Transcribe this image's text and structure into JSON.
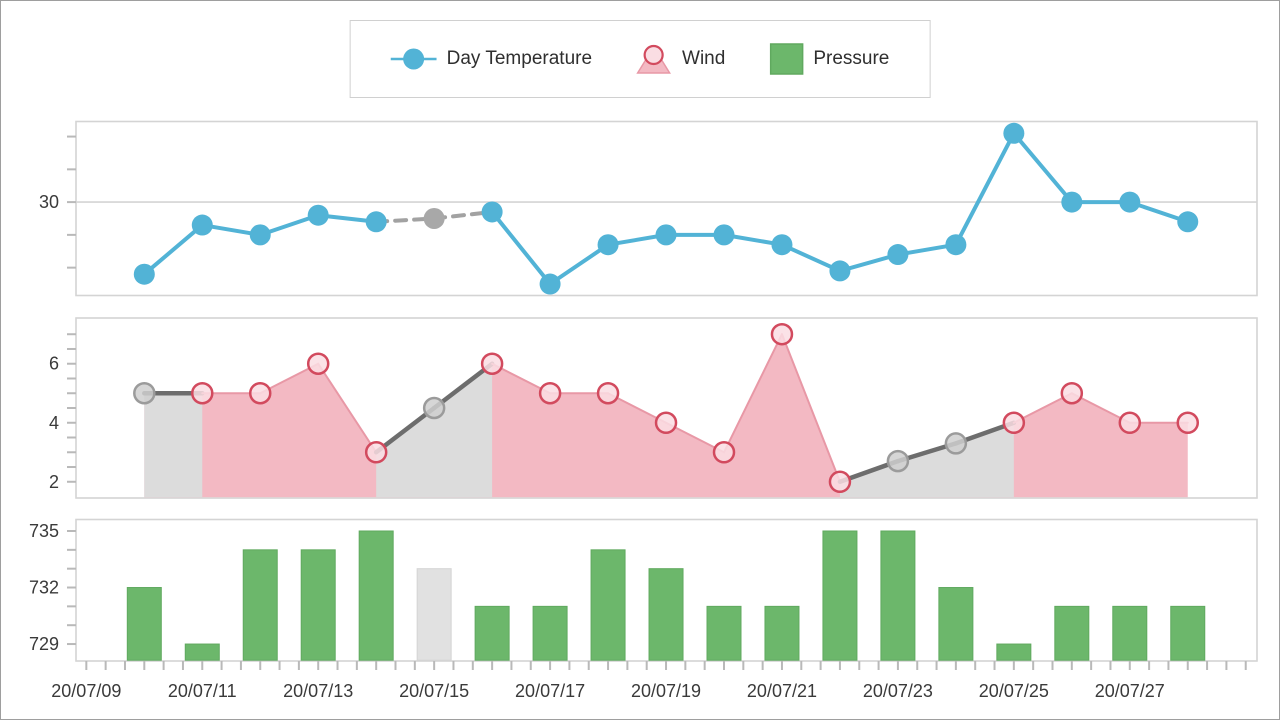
{
  "legend": {
    "items": [
      {
        "label": "Day Temperature",
        "series": "temperature",
        "marker": "line-circle"
      },
      {
        "label": "Wind",
        "series": "wind",
        "marker": "triangle-circle"
      },
      {
        "label": "Pressure",
        "series": "pressure",
        "marker": "square"
      }
    ]
  },
  "colors": {
    "temperature": "#52b3d6",
    "wind_area_fill": "#f3b9c3",
    "wind_line": "#e898a6",
    "wind_marker_stroke": "#d24a5e",
    "wind_marker_fill": "#fadde3",
    "pressure": "#6cb76b",
    "pressure_border": "#60a95f",
    "estimated_area_fill": "#dcdcdc",
    "estimated_thick_line": "#6d6d6d",
    "estimated_dash_line": "#a2a2a2",
    "estimated_marker_fill": "#a8a8a8",
    "estimated_wind_marker_fill": "#cfcfcf",
    "estimated_wind_marker_stroke": "#9b9b9b",
    "estimated_bar_fill": "#e1e1e1",
    "estimated_bar_border": "#d4d4d4",
    "pane_border": "#d4d4d4",
    "gridline": "#d4d4d4",
    "tick": "#b9b9b9",
    "text": "#3a3a3a"
  },
  "x_axis": {
    "labels": [
      {
        "day_offset": -1,
        "text": "20/07/09"
      },
      {
        "day_offset": 1,
        "text": "20/07/11"
      },
      {
        "day_offset": 3,
        "text": "20/07/13"
      },
      {
        "day_offset": 5,
        "text": "20/07/15"
      },
      {
        "day_offset": 7,
        "text": "20/07/17"
      },
      {
        "day_offset": 9,
        "text": "20/07/19"
      },
      {
        "day_offset": 11,
        "text": "20/07/21"
      },
      {
        "day_offset": 13,
        "text": "20/07/23"
      },
      {
        "day_offset": 15,
        "text": "20/07/25"
      },
      {
        "day_offset": 17,
        "text": "20/07/27"
      }
    ]
  },
  "chart_data": [
    {
      "name": "temperature",
      "type": "line",
      "legend_label": "Day Temperature",
      "categories": [
        "20/07/10",
        "20/07/11",
        "20/07/12",
        "20/07/13",
        "20/07/14",
        "20/07/15",
        "20/07/16",
        "20/07/17",
        "20/07/18",
        "20/07/19",
        "20/07/20",
        "20/07/21",
        "20/07/22",
        "20/07/23",
        "20/07/24",
        "20/07/25",
        "20/07/26",
        "20/07/27",
        "20/07/28"
      ],
      "values": [
        27.8,
        29.3,
        29.0,
        29.6,
        29.4,
        29.5,
        29.7,
        27.5,
        28.7,
        29.0,
        29.0,
        28.7,
        27.9,
        28.4,
        28.7,
        32.1,
        30.0,
        30.0,
        29.4
      ],
      "estimated_indices": [
        5
      ],
      "ylabel_ticks": [
        {
          "v": 30,
          "text": "30"
        }
      ],
      "axis_ticks": [
        28,
        29,
        30,
        31,
        32
      ],
      "gridlines": [
        30
      ],
      "ylim": [
        27.15,
        32.46
      ]
    },
    {
      "name": "wind",
      "type": "area",
      "legend_label": "Wind",
      "categories": [
        "20/07/10",
        "20/07/11",
        "20/07/12",
        "20/07/13",
        "20/07/14",
        "20/07/15",
        "20/07/16",
        "20/07/17",
        "20/07/18",
        "20/07/19",
        "20/07/20",
        "20/07/21",
        "20/07/22",
        "20/07/23",
        "20/07/24",
        "20/07/25",
        "20/07/26",
        "20/07/27",
        "20/07/28"
      ],
      "values": [
        5.0,
        5.0,
        5.0,
        6.0,
        3.0,
        4.5,
        6.0,
        5.0,
        5.0,
        4.0,
        3.0,
        7.0,
        2.0,
        2.7,
        3.3,
        4.0,
        5.0,
        4.0,
        4.0
      ],
      "estimated_indices": [
        0,
        5,
        13,
        14
      ],
      "ylabel_ticks": [
        {
          "v": 6,
          "text": "6"
        },
        {
          "v": 4,
          "text": "4"
        },
        {
          "v": 2,
          "text": "2"
        }
      ],
      "axis_ticks": [
        2,
        2.5,
        3,
        3.5,
        4,
        4.5,
        5,
        5.5,
        6,
        6.5,
        7
      ],
      "gridlines": [],
      "ylim": [
        1.45,
        7.55
      ]
    },
    {
      "name": "pressure",
      "type": "bar",
      "legend_label": "Pressure",
      "categories": [
        "20/07/10",
        "20/07/11",
        "20/07/12",
        "20/07/13",
        "20/07/14",
        "20/07/15",
        "20/07/16",
        "20/07/17",
        "20/07/18",
        "20/07/19",
        "20/07/20",
        "20/07/21",
        "20/07/22",
        "20/07/23",
        "20/07/24",
        "20/07/25",
        "20/07/26",
        "20/07/27",
        "20/07/28"
      ],
      "values": [
        732,
        729,
        734,
        734,
        735,
        733,
        731,
        731,
        734,
        733,
        731,
        731,
        735,
        735,
        732,
        729,
        731,
        731,
        731
      ],
      "estimated_indices": [
        5
      ],
      "ylabel_ticks": [
        {
          "v": 735,
          "text": "735"
        },
        {
          "v": 732,
          "text": "732"
        },
        {
          "v": 729,
          "text": "729"
        }
      ],
      "axis_ticks": [
        729,
        730,
        731,
        732,
        733,
        734,
        735
      ],
      "gridlines": [],
      "ylim": [
        728.1,
        735.61
      ]
    }
  ]
}
